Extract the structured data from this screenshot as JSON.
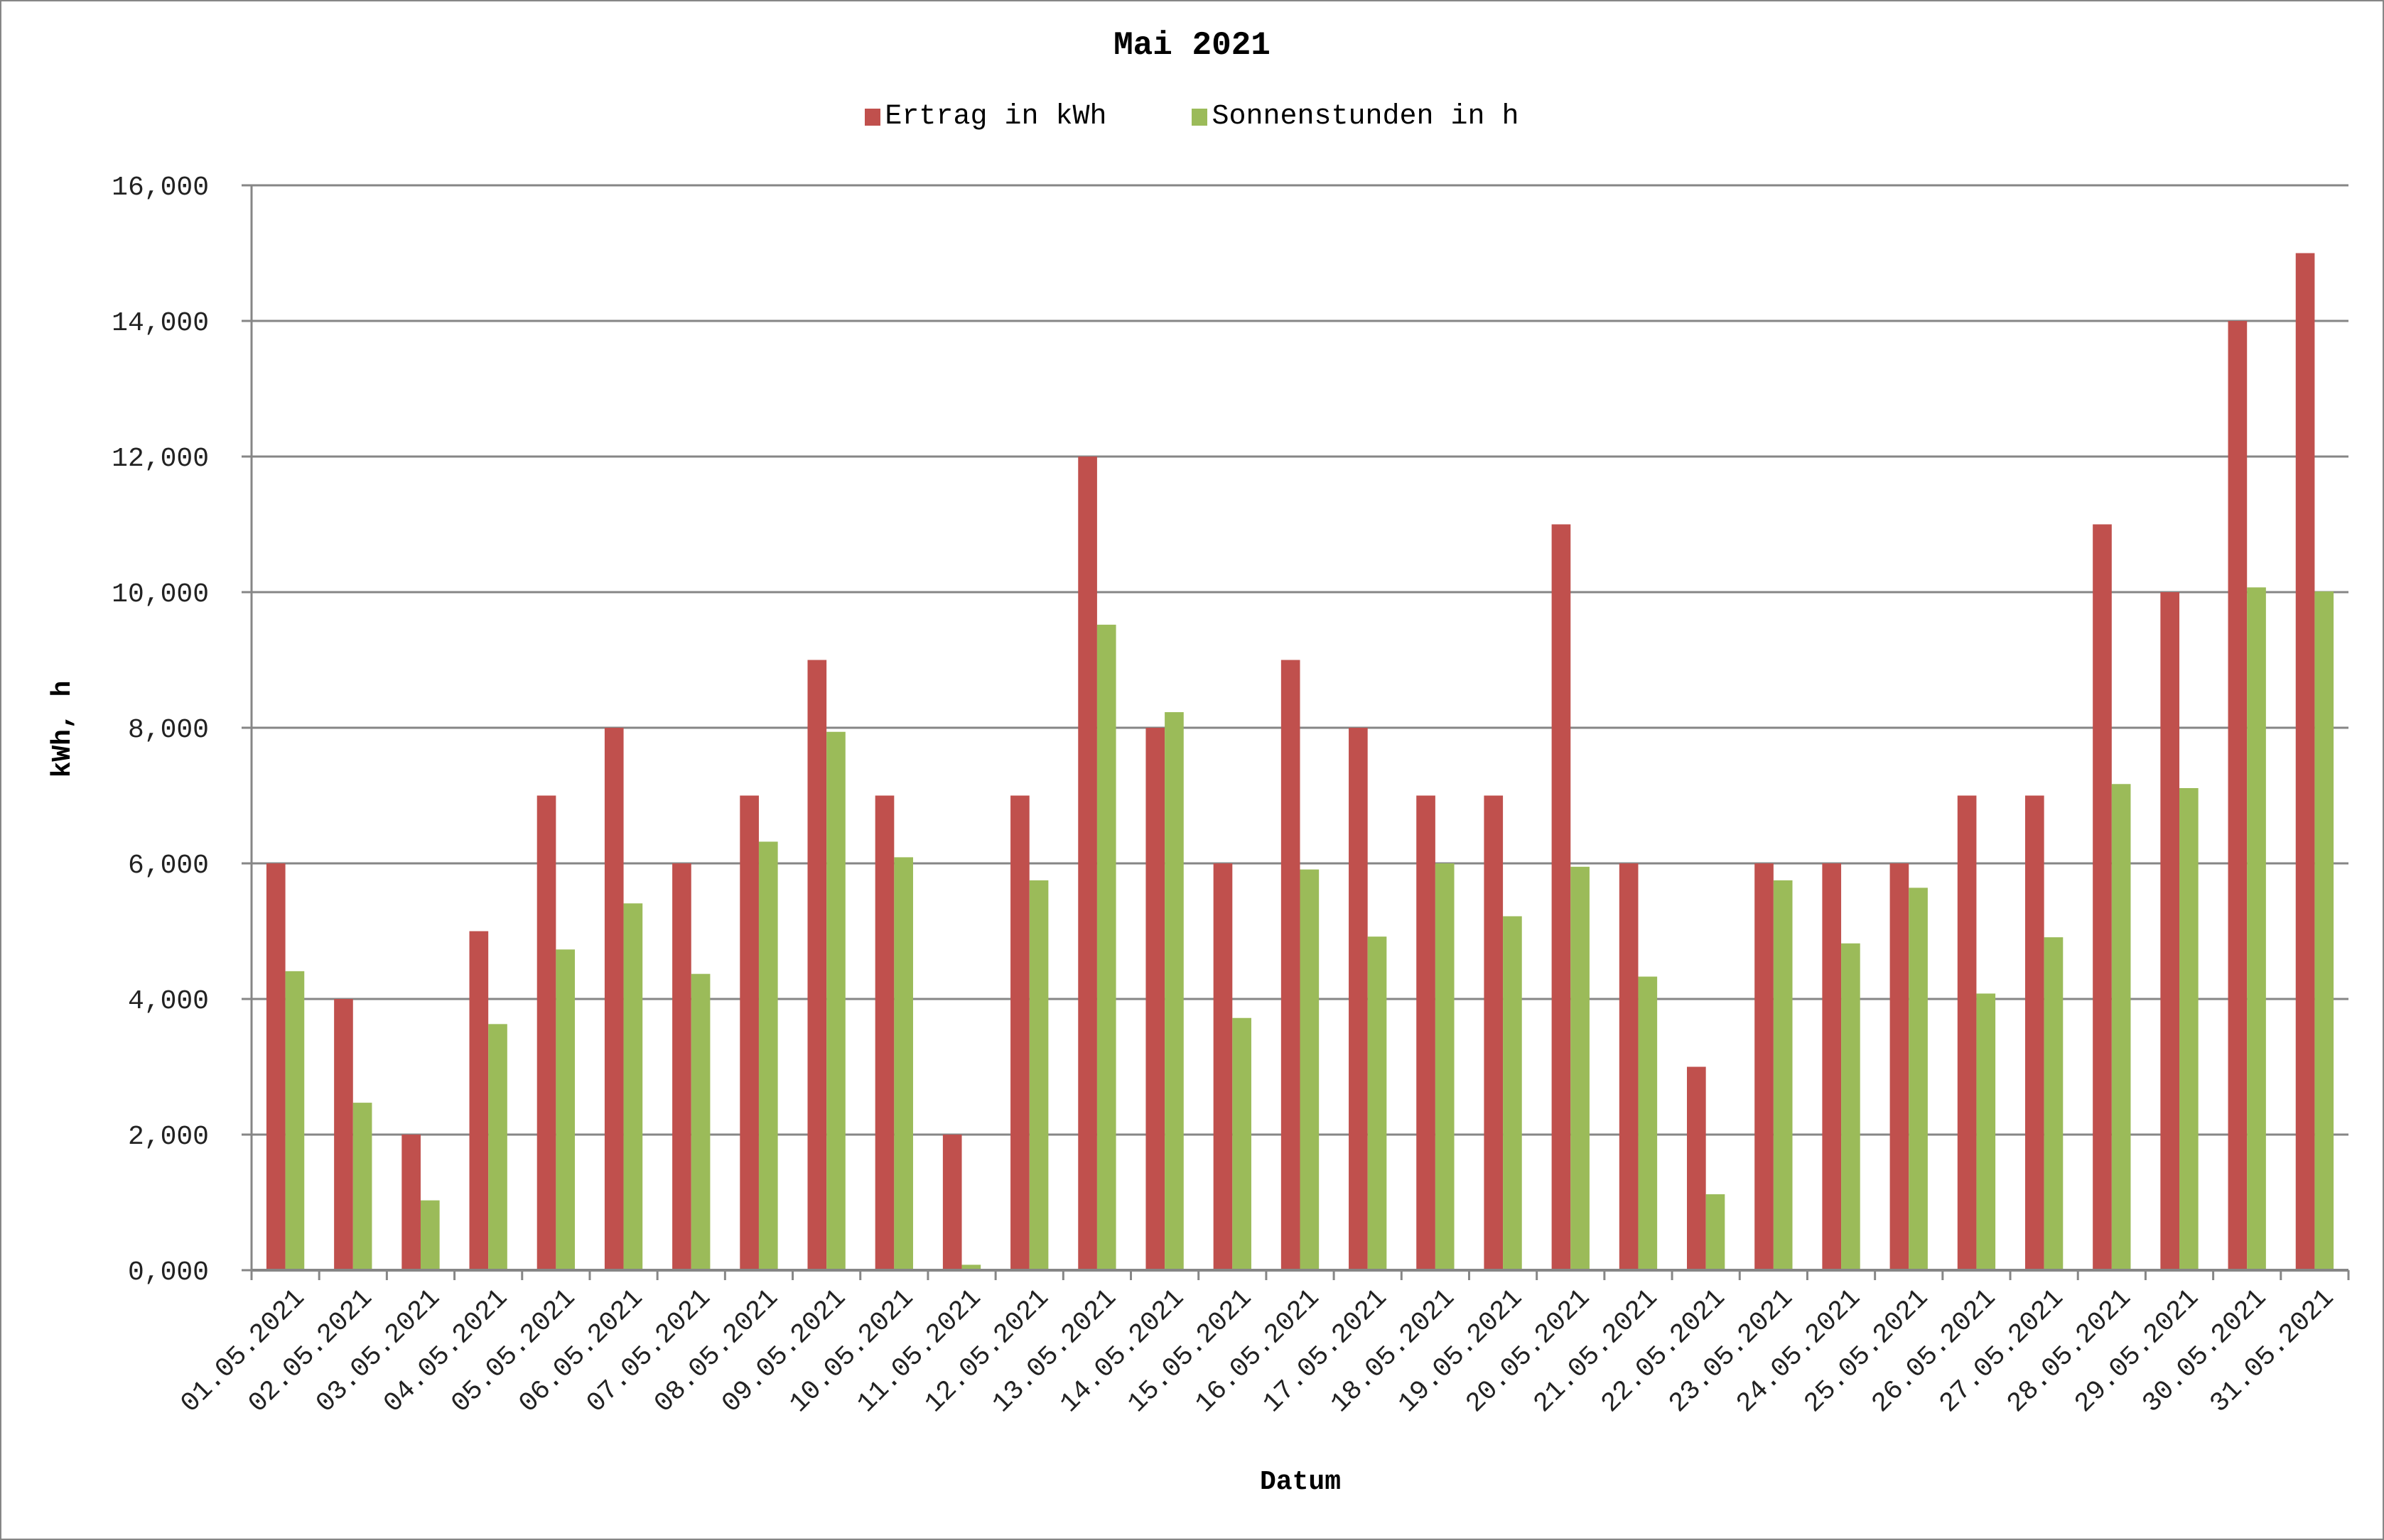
{
  "chart_data": {
    "type": "bar",
    "title": "Mai 2021",
    "xlabel": "Datum",
    "ylabel": "kWh, h",
    "ylim": [
      0,
      16
    ],
    "yticks": [
      "0,000",
      "2,000",
      "4,000",
      "6,000",
      "8,000",
      "10,000",
      "12,000",
      "14,000",
      "16,000"
    ],
    "grid": true,
    "legend_position": "top",
    "categories": [
      "01.05.2021",
      "02.05.2021",
      "03.05.2021",
      "04.05.2021",
      "05.05.2021",
      "06.05.2021",
      "07.05.2021",
      "08.05.2021",
      "09.05.2021",
      "10.05.2021",
      "11.05.2021",
      "12.05.2021",
      "13.05.2021",
      "14.05.2021",
      "15.05.2021",
      "16.05.2021",
      "17.05.2021",
      "18.05.2021",
      "19.05.2021",
      "20.05.2021",
      "21.05.2021",
      "22.05.2021",
      "23.05.2021",
      "24.05.2021",
      "25.05.2021",
      "26.05.2021",
      "27.05.2021",
      "28.05.2021",
      "29.05.2021",
      "30.05.2021",
      "31.05.2021"
    ],
    "series": [
      {
        "name": "Ertrag in kWh",
        "color": "#C0504D",
        "values": [
          6,
          4,
          2,
          5,
          7,
          8,
          6,
          7,
          9,
          7,
          2,
          7,
          12,
          8,
          6,
          9,
          8,
          7,
          7,
          11,
          6,
          3,
          6,
          6,
          6,
          7,
          7,
          11,
          10,
          14,
          15
        ]
      },
      {
        "name": "Sonnenstunden in h",
        "color": "#9BBB59",
        "values": [
          4.41,
          2.47,
          1.03,
          3.63,
          4.73,
          5.41,
          4.37,
          6.32,
          7.94,
          6.09,
          0.08,
          5.75,
          9.52,
          8.23,
          3.72,
          5.91,
          4.92,
          6.0,
          5.22,
          5.95,
          4.33,
          1.12,
          5.75,
          4.82,
          5.64,
          4.08,
          4.91,
          7.17,
          7.11,
          10.07,
          10.01
        ]
      }
    ]
  },
  "colors": {
    "gridline": "#868686",
    "border": "#868686"
  }
}
